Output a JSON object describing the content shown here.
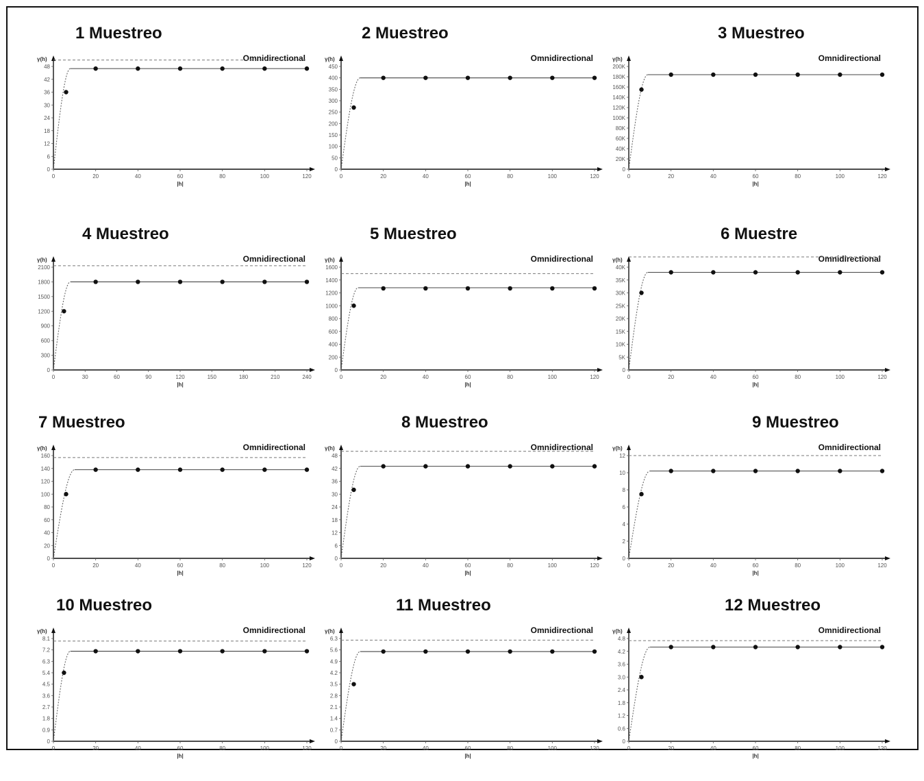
{
  "chart_data": [
    {
      "type": "scatter",
      "title": "1 Muestreo",
      "legend": "Omnidirectional",
      "ylabel": "γ(h)",
      "xlabel": "|h|",
      "xticks": [
        "0",
        "20",
        "40",
        "60",
        "80",
        "100",
        "120"
      ],
      "yticks": [
        "0",
        "6",
        "12",
        "18",
        "24",
        "30",
        "36",
        "42",
        "48"
      ],
      "xlim": [
        0,
        120
      ],
      "ylim": [
        0,
        48
      ],
      "sill": 51,
      "model_plateau": 47,
      "range": 8,
      "points": {
        "x": [
          6,
          20,
          40,
          60,
          80,
          100,
          120
        ],
        "y": [
          36,
          47,
          47,
          47,
          47,
          47,
          47
        ]
      }
    },
    {
      "type": "scatter",
      "title": "2 Muestreo",
      "legend": "Omnidirectional",
      "ylabel": "γ(h)",
      "xlabel": "|h|",
      "xticks": [
        "0",
        "20",
        "40",
        "60",
        "80",
        "100",
        "120"
      ],
      "yticks": [
        "0",
        "50",
        "100",
        "150",
        "200",
        "250",
        "300",
        "350",
        "400",
        "450"
      ],
      "xlim": [
        0,
        120
      ],
      "ylim": [
        0,
        450
      ],
      "sill": null,
      "model_plateau": 400,
      "range": 9,
      "points": {
        "x": [
          6,
          20,
          40,
          60,
          80,
          100,
          120
        ],
        "y": [
          270,
          400,
          400,
          400,
          400,
          400,
          400
        ]
      }
    },
    {
      "type": "scatter",
      "title": "3 Muestreo",
      "legend": "Omnidirectional",
      "ylabel": "γ(h)",
      "xlabel": "|h|",
      "xticks": [
        "0",
        "20",
        "40",
        "60",
        "80",
        "100",
        "120"
      ],
      "yticks": [
        "0",
        "20K",
        "40K",
        "60K",
        "80K",
        "100K",
        "120K",
        "140K",
        "160K",
        "180K",
        "200K"
      ],
      "xlim": [
        0,
        120
      ],
      "ylim": [
        0,
        200000
      ],
      "sill": null,
      "model_plateau": 184000,
      "range": 9,
      "points": {
        "x": [
          6,
          20,
          40,
          60,
          80,
          100,
          120
        ],
        "y": [
          155000,
          184000,
          184000,
          184000,
          184000,
          184000,
          184000
        ]
      }
    },
    {
      "type": "scatter",
      "title": "4 Muestreo",
      "legend": "Omnidirectional",
      "ylabel": "γ(h)",
      "xlabel": "|h|",
      "xticks": [
        "0",
        "30",
        "60",
        "90",
        "120",
        "150",
        "180",
        "210",
        "240"
      ],
      "yticks": [
        "0",
        "300",
        "600",
        "900",
        "1200",
        "1500",
        "1800",
        "2100"
      ],
      "xlim": [
        0,
        240
      ],
      "ylim": [
        0,
        2100
      ],
      "sill": 2130,
      "model_plateau": 1800,
      "range": 16,
      "points": {
        "x": [
          10,
          40,
          80,
          120,
          160,
          200,
          240
        ],
        "y": [
          1200,
          1800,
          1800,
          1800,
          1800,
          1800,
          1800
        ]
      }
    },
    {
      "type": "scatter",
      "title": "5 Muestreo",
      "legend": "Omnidirectional",
      "ylabel": "γ(h)",
      "xlabel": "|h|",
      "xticks": [
        "0",
        "20",
        "40",
        "60",
        "80",
        "100",
        "120"
      ],
      "yticks": [
        "0",
        "200",
        "400",
        "600",
        "800",
        "1000",
        "1200",
        "1400",
        "1600"
      ],
      "xlim": [
        0,
        120
      ],
      "ylim": [
        0,
        1600
      ],
      "sill": 1500,
      "model_plateau": 1280,
      "range": 8,
      "points": {
        "x": [
          6,
          20,
          40,
          60,
          80,
          100,
          120
        ],
        "y": [
          1000,
          1270,
          1270,
          1270,
          1270,
          1270,
          1270
        ]
      }
    },
    {
      "type": "scatter",
      "title": "6 Muestre",
      "legend": "Omnidirectional",
      "ylabel": "γ(h)",
      "xlabel": "|h|",
      "xticks": [
        "0",
        "20",
        "40",
        "60",
        "80",
        "100",
        "120"
      ],
      "yticks": [
        "0",
        "5K",
        "10K",
        "15K",
        "20K",
        "25K",
        "30K",
        "35K",
        "40K"
      ],
      "xlim": [
        0,
        120
      ],
      "ylim": [
        0,
        40000
      ],
      "sill": 44000,
      "model_plateau": 38000,
      "range": 9,
      "points": {
        "x": [
          6,
          20,
          40,
          60,
          80,
          100,
          120
        ],
        "y": [
          30000,
          38000,
          38000,
          38000,
          38000,
          38000,
          38000
        ]
      }
    },
    {
      "type": "scatter",
      "title": "7 Muestreo",
      "legend": "Omnidirectional",
      "ylabel": "γ(h)",
      "xlabel": "|h|",
      "xticks": [
        "0",
        "20",
        "40",
        "60",
        "80",
        "100",
        "120"
      ],
      "yticks": [
        "0",
        "20",
        "40",
        "60",
        "80",
        "100",
        "120",
        "140",
        "160"
      ],
      "xlim": [
        0,
        120
      ],
      "ylim": [
        0,
        160
      ],
      "sill": 157,
      "model_plateau": 138,
      "range": 10,
      "points": {
        "x": [
          6,
          20,
          40,
          60,
          80,
          100,
          120
        ],
        "y": [
          100,
          138,
          138,
          138,
          138,
          138,
          138
        ]
      }
    },
    {
      "type": "scatter",
      "title": "8 Muestreo",
      "legend": "Omnidirectional",
      "ylabel": "γ(h)",
      "xlabel": "|h|",
      "xticks": [
        "0",
        "20",
        "40",
        "60",
        "80",
        "100",
        "120"
      ],
      "yticks": [
        "0",
        "6",
        "12",
        "18",
        "24",
        "30",
        "36",
        "42",
        "48"
      ],
      "xlim": [
        0,
        120
      ],
      "ylim": [
        0,
        48
      ],
      "sill": 50,
      "model_plateau": 43,
      "range": 9,
      "points": {
        "x": [
          6,
          20,
          40,
          60,
          80,
          100,
          120
        ],
        "y": [
          32,
          43,
          43,
          43,
          43,
          43,
          43
        ]
      }
    },
    {
      "type": "scatter",
      "title": "9 Muestreo",
      "legend": "Omnidirectional",
      "ylabel": "γ(h)",
      "xlabel": "|h|",
      "xticks": [
        "0",
        "20",
        "40",
        "60",
        "80",
        "100",
        "120"
      ],
      "yticks": [
        "0",
        "2",
        "4",
        "6",
        "8",
        "10",
        "12"
      ],
      "xlim": [
        0,
        120
      ],
      "ylim": [
        0,
        12
      ],
      "sill": 12,
      "model_plateau": 10.2,
      "range": 10,
      "points": {
        "x": [
          6,
          20,
          40,
          60,
          80,
          100,
          120
        ],
        "y": [
          7.5,
          10.2,
          10.2,
          10.2,
          10.2,
          10.2,
          10.2
        ]
      }
    },
    {
      "type": "scatter",
      "title": "10 Muestreo",
      "legend": "Omnidirectional",
      "ylabel": "γ(h)",
      "xlabel": "|h|",
      "xticks": [
        "0",
        "20",
        "40",
        "60",
        "80",
        "100",
        "120"
      ],
      "yticks": [
        "0",
        "0.9",
        "1.8",
        "2.7",
        "3.6",
        "4.5",
        "5.4",
        "6.3",
        "7.2",
        "8.1"
      ],
      "xlim": [
        0,
        120
      ],
      "ylim": [
        0,
        8.1
      ],
      "sill": 7.9,
      "model_plateau": 7.1,
      "range": 8,
      "points": {
        "x": [
          5,
          20,
          40,
          60,
          80,
          100,
          120
        ],
        "y": [
          5.4,
          7.1,
          7.1,
          7.1,
          7.1,
          7.1,
          7.1
        ]
      }
    },
    {
      "type": "scatter",
      "title": "11 Muestreo",
      "legend": "Omnidirectional",
      "ylabel": "γ(h)",
      "xlabel": "|h|",
      "xticks": [
        "0",
        "20",
        "40",
        "60",
        "80",
        "100",
        "120"
      ],
      "yticks": [
        "0",
        "0.7",
        "1.4",
        "2.1",
        "2.8",
        "3.5",
        "4.2",
        "4.9",
        "5.6",
        "6.3"
      ],
      "xlim": [
        0,
        120
      ],
      "ylim": [
        0,
        6.3
      ],
      "sill": 6.2,
      "model_plateau": 5.5,
      "range": 9,
      "points": {
        "x": [
          6,
          20,
          40,
          60,
          80,
          100,
          120
        ],
        "y": [
          3.5,
          5.5,
          5.5,
          5.5,
          5.5,
          5.5,
          5.5
        ]
      }
    },
    {
      "type": "scatter",
      "title": "12 Muestreo",
      "legend": "Omnidirectional",
      "ylabel": "γ(h)",
      "xlabel": "|h|",
      "xticks": [
        "0",
        "20",
        "40",
        "60",
        "80",
        "100",
        "120"
      ],
      "yticks": [
        "0",
        "0.6",
        "1.2",
        "1.8",
        "2.4",
        "3.0",
        "3.6",
        "4.2",
        "4.8"
      ],
      "xlim": [
        0,
        120
      ],
      "ylim": [
        0,
        4.8
      ],
      "sill": 4.7,
      "model_plateau": 4.4,
      "range": 10,
      "points": {
        "x": [
          6,
          20,
          40,
          60,
          80,
          100,
          120
        ],
        "y": [
          3.0,
          4.4,
          4.4,
          4.4,
          4.4,
          4.4,
          4.4
        ]
      }
    }
  ]
}
